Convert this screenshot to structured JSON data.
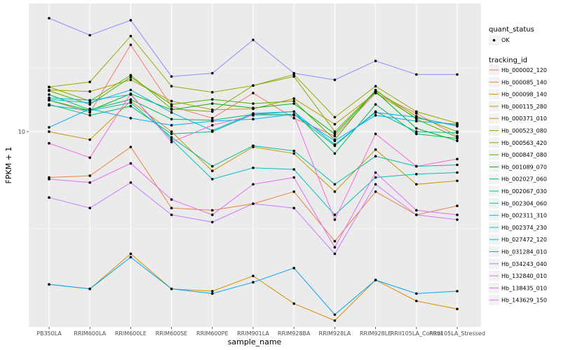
{
  "chart_data": {
    "type": "line",
    "xlabel": "sample_name",
    "ylabel": "FPKM + 1",
    "y_scale": "log",
    "y_ticks": [
      10
    ],
    "y_tick_labels": [
      "10"
    ],
    "ylim": [
      1.7,
      32
    ],
    "grid": true,
    "legend_position": "right",
    "categories": [
      "PB350LA",
      "RRIM600LA",
      "RRIM600LE",
      "RRIM600SE",
      "RRIM600PE",
      "RRIM901LA",
      "RRIM928BA",
      "RRIM928LA",
      "RRIM928LE",
      "RRII105LA_Control",
      "RRII105LA_Stressed"
    ],
    "legend_quant": {
      "title": "quant_status",
      "items": [
        "OK"
      ]
    },
    "legend_tracking_title": "tracking_id",
    "series": [
      {
        "name": "Hb_000002_120",
        "color": "#F8766D",
        "values": [
          13.3,
          11.9,
          22.0,
          12.6,
          11.3,
          14.2,
          11.3,
          9.6,
          14.2,
          11.8,
          9.6
        ]
      },
      {
        "name": "Hb_000085_140",
        "color": "#EC823C",
        "values": [
          6.6,
          6.7,
          8.7,
          5.0,
          4.9,
          5.2,
          5.8,
          3.7,
          5.8,
          4.7,
          5.1
        ]
      },
      {
        "name": "Hb_000098_140",
        "color": "#DD8D00",
        "values": [
          2.5,
          2.4,
          3.3,
          2.4,
          2.35,
          2.7,
          2.1,
          1.8,
          2.6,
          2.15,
          2.0
        ]
      },
      {
        "name": "Hb_000115_280",
        "color": "#CB9600",
        "values": [
          10.0,
          9.3,
          13.2,
          10.0,
          7.0,
          8.7,
          8.2,
          5.8,
          8.5,
          6.2,
          6.4
        ]
      },
      {
        "name": "Hb_000371_010",
        "color": "#B59F00",
        "values": [
          14.6,
          14.4,
          16.0,
          13.2,
          12.2,
          12.3,
          13.5,
          10.7,
          14.2,
          11.3,
          10.6
        ]
      },
      {
        "name": "Hb_000523_080",
        "color": "#9AA800",
        "values": [
          15.0,
          15.7,
          23.8,
          15.1,
          14.3,
          15.2,
          16.8,
          11.4,
          15.1,
          12.0,
          10.8
        ]
      },
      {
        "name": "Hb_000563_420",
        "color": "#7AAE00",
        "values": [
          15.0,
          13.2,
          16.7,
          12.3,
          12.0,
          15.2,
          16.5,
          10.0,
          14.5,
          11.5,
          10.0
        ]
      },
      {
        "name": "Hb_000847_080",
        "color": "#4BB400",
        "values": [
          14.5,
          12.8,
          16.4,
          12.8,
          13.4,
          12.9,
          13.2,
          9.3,
          14.6,
          11.2,
          9.5
        ]
      },
      {
        "name": "Hb_001089_070",
        "color": "#00B81F",
        "values": [
          13.3,
          12.1,
          14.1,
          12.2,
          12.9,
          12.4,
          12.9,
          9.8,
          14.4,
          10.3,
          9.2
        ]
      },
      {
        "name": "Hb_002027_060",
        "color": "#00BC59",
        "values": [
          14.0,
          12.2,
          13.4,
          11.2,
          11.1,
          11.7,
          12.0,
          8.2,
          12.8,
          9.8,
          9.4
        ]
      },
      {
        "name": "Hb_002067_030",
        "color": "#00BE83",
        "values": [
          12.8,
          11.6,
          12.6,
          9.8,
          10.0,
          11.7,
          11.7,
          8.8,
          12.0,
          10.0,
          9.9
        ]
      },
      {
        "name": "Hb_002304_060",
        "color": "#00C0A7",
        "values": [
          12.7,
          12.1,
          13.0,
          9.5,
          7.3,
          8.8,
          8.4,
          6.2,
          8.0,
          7.3,
          7.4
        ]
      },
      {
        "name": "Hb_002311_310",
        "color": "#00BFC4",
        "values": [
          13.6,
          13.3,
          14.0,
          9.3,
          6.5,
          7.2,
          7.1,
          4.7,
          6.6,
          6.8,
          6.9
        ]
      },
      {
        "name": "Hb_002374_230",
        "color": "#00B8E5",
        "values": [
          13.4,
          13.0,
          14.6,
          11.9,
          10.1,
          11.8,
          12.0,
          8.9,
          11.9,
          11.4,
          10.5
        ]
      },
      {
        "name": "Hb_027472_120",
        "color": "#00AFFB",
        "values": [
          10.4,
          12.3,
          11.3,
          10.6,
          11.0,
          11.2,
          11.7,
          9.2,
          11.6,
          11.0,
          10.7
        ]
      },
      {
        "name": "Hb_031284_010",
        "color": "#00A5FF",
        "values": [
          2.5,
          2.4,
          3.2,
          2.4,
          2.3,
          2.55,
          2.9,
          1.9,
          2.6,
          2.3,
          2.35
        ]
      },
      {
        "name": "Hb_034243_040",
        "color": "#8A8FFF",
        "values": [
          28.0,
          24.0,
          27.5,
          16.5,
          17.0,
          23.0,
          17.0,
          16.0,
          19.0,
          16.8,
          16.8
        ]
      },
      {
        "name": "Hb_132840_010",
        "color": "#C77CFF",
        "values": [
          5.5,
          5.0,
          6.3,
          4.7,
          4.4,
          5.2,
          5.0,
          3.3,
          6.2,
          4.7,
          4.5
        ]
      },
      {
        "name": "Hb_138435_010",
        "color": "#E56DF6",
        "values": [
          6.5,
          6.3,
          7.5,
          5.4,
          4.7,
          6.2,
          6.6,
          3.5,
          6.9,
          4.9,
          4.7
        ]
      },
      {
        "name": "Hb_143629_150",
        "color": "#F669DD",
        "values": [
          9.0,
          7.9,
          14.1,
          9.1,
          10.6,
          11.6,
          11.6,
          4.5,
          9.8,
          7.3,
          7.8
        ]
      }
    ]
  }
}
